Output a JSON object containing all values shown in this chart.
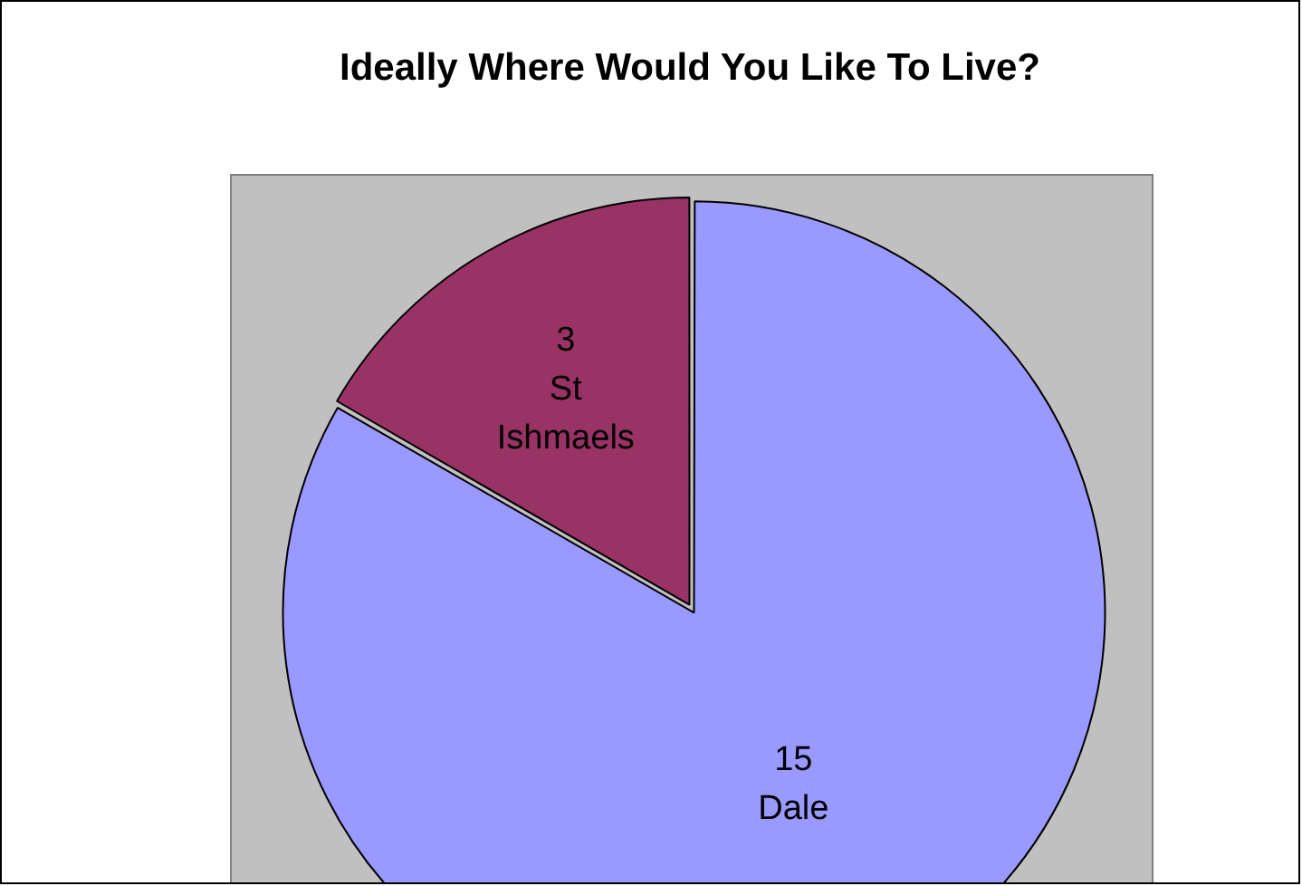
{
  "chart_data": {
    "type": "pie",
    "title": "Ideally Where Would You Like To Live?",
    "categories": [
      "Dale",
      "St Ishmaels"
    ],
    "values": [
      15,
      3
    ],
    "colors": [
      "#9999ff",
      "#993366"
    ],
    "data_labels": true,
    "legend": false
  }
}
